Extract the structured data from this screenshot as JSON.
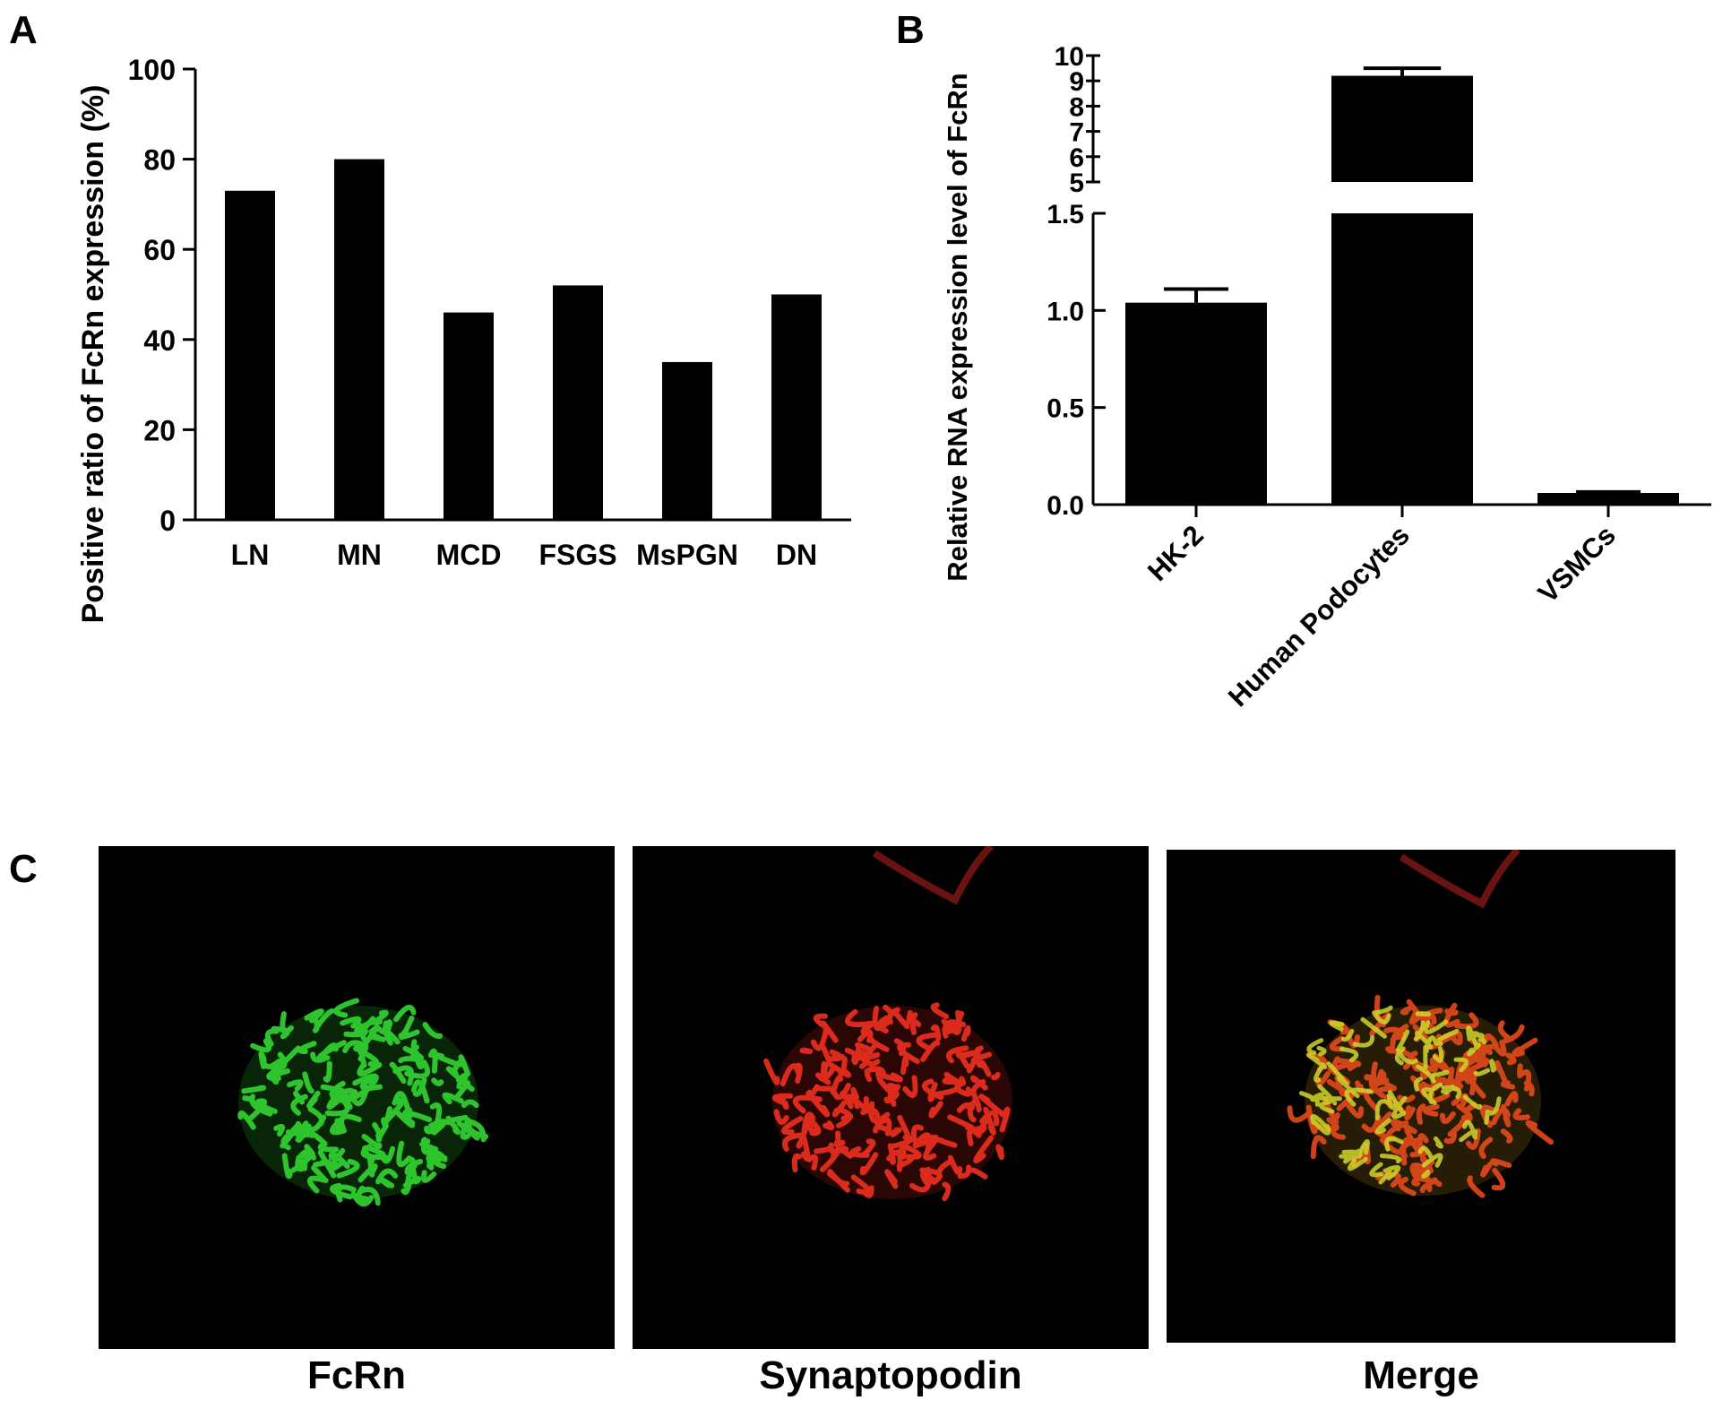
{
  "panels": {
    "a": {
      "letter": "A"
    },
    "b": {
      "letter": "B"
    },
    "c": {
      "letter": "C"
    }
  },
  "chart_data": [
    {
      "type": "bar",
      "categories": [
        "LN",
        "MN",
        "MCD",
        "FSGS",
        "MsPGN",
        "DN"
      ],
      "values": [
        73,
        80,
        46,
        52,
        35,
        50
      ],
      "ylabel": "Positive ratio of FcRn expression (%)",
      "ylim": [
        0,
        100
      ],
      "yticks": [
        0,
        20,
        40,
        60,
        80,
        100
      ],
      "bar_color": "#000000",
      "grid": false
    },
    {
      "type": "bar",
      "categories": [
        "HK-2",
        "Human Podocytes",
        "VSMCs"
      ],
      "values": [
        1.04,
        9.2,
        0.06
      ],
      "errors": [
        0.07,
        0.3,
        0.005
      ],
      "ylabel": "Relative RNA expression level of FcRn",
      "broken_axis": true,
      "lower_range": [
        0,
        1.5
      ],
      "upper_range": [
        5,
        10
      ],
      "yticks_lower": [
        "0.0",
        "0.5",
        "1.0",
        "1.5"
      ],
      "yticks_upper": [
        "5",
        "6",
        "7",
        "8",
        "9",
        "10"
      ],
      "bar_color": "#000000",
      "grid": false
    }
  ],
  "micrographs": [
    {
      "label": "FcRn",
      "channel_color": "#2ecc2e"
    },
    {
      "label": "Synaptopodin",
      "channel_color": "#e8261e"
    },
    {
      "label": "Merge",
      "channel_color": "#d9c21f"
    }
  ]
}
